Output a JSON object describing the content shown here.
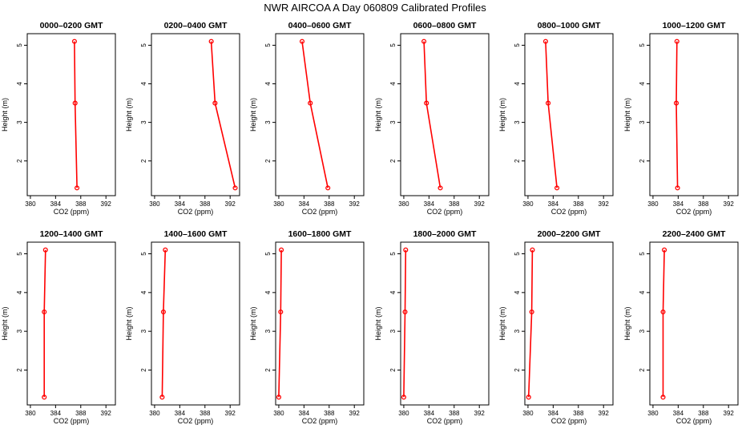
{
  "figure": {
    "title": "NWR AIRCOA A  Day 060809  Calibrated Profiles"
  },
  "style": {
    "line_color": "#ff0000",
    "marker_color": "#ff0000",
    "frame_color": "#000000"
  },
  "chart_data": [
    {
      "type": "line",
      "title": "0000–0200 GMT",
      "xlabel": "CO2 (ppm)",
      "ylabel": "Height (m)",
      "xlim": [
        379.5,
        393.5
      ],
      "ylim": [
        1.1,
        5.3
      ],
      "xticks": [
        380,
        384,
        388,
        392
      ],
      "yticks": [
        2,
        3,
        4,
        5
      ],
      "grid": false,
      "series": [
        {
          "x": [
            387.0,
            387.1,
            387.4
          ],
          "y": [
            5.1,
            3.5,
            1.3
          ]
        }
      ]
    },
    {
      "type": "line",
      "title": "0200–0400 GMT",
      "xlabel": "CO2 (ppm)",
      "ylabel": "Height (m)",
      "xlim": [
        379.5,
        393.5
      ],
      "ylim": [
        1.1,
        5.3
      ],
      "xticks": [
        380,
        384,
        388,
        392
      ],
      "yticks": [
        2,
        3,
        4,
        5
      ],
      "grid": false,
      "series": [
        {
          "x": [
            389.0,
            389.6,
            392.8
          ],
          "y": [
            5.1,
            3.5,
            1.3
          ]
        }
      ]
    },
    {
      "type": "line",
      "title": "0400–0600 GMT",
      "xlabel": "CO2 (ppm)",
      "ylabel": "Height (m)",
      "xlim": [
        379.5,
        393.5
      ],
      "ylim": [
        1.1,
        5.3
      ],
      "xticks": [
        380,
        384,
        388,
        392
      ],
      "yticks": [
        2,
        3,
        4,
        5
      ],
      "grid": false,
      "series": [
        {
          "x": [
            383.7,
            385.0,
            387.8
          ],
          "y": [
            5.1,
            3.5,
            1.3
          ]
        }
      ]
    },
    {
      "type": "line",
      "title": "0600–0800 GMT",
      "xlabel": "CO2 (ppm)",
      "ylabel": "Height (m)",
      "xlim": [
        379.5,
        393.5
      ],
      "ylim": [
        1.1,
        5.3
      ],
      "xticks": [
        380,
        384,
        388,
        392
      ],
      "yticks": [
        2,
        3,
        4,
        5
      ],
      "grid": false,
      "series": [
        {
          "x": [
            383.2,
            383.6,
            385.8
          ],
          "y": [
            5.1,
            3.5,
            1.3
          ]
        }
      ]
    },
    {
      "type": "line",
      "title": "0800–1000 GMT",
      "xlabel": "CO2 (ppm)",
      "ylabel": "Height (m)",
      "xlim": [
        379.5,
        393.5
      ],
      "ylim": [
        1.1,
        5.3
      ],
      "xticks": [
        380,
        384,
        388,
        392
      ],
      "yticks": [
        2,
        3,
        4,
        5
      ],
      "grid": false,
      "series": [
        {
          "x": [
            382.8,
            383.2,
            384.6
          ],
          "y": [
            5.1,
            3.5,
            1.3
          ]
        }
      ]
    },
    {
      "type": "line",
      "title": "1000–1200 GMT",
      "xlabel": "CO2 (ppm)",
      "ylabel": "Height (m)",
      "xlim": [
        379.5,
        393.5
      ],
      "ylim": [
        1.1,
        5.3
      ],
      "xticks": [
        380,
        384,
        388,
        392
      ],
      "yticks": [
        2,
        3,
        4,
        5
      ],
      "grid": false,
      "series": [
        {
          "x": [
            383.8,
            383.7,
            383.9
          ],
          "y": [
            5.1,
            3.5,
            1.3
          ]
        }
      ]
    },
    {
      "type": "line",
      "title": "1200–1400 GMT",
      "xlabel": "CO2 (ppm)",
      "ylabel": "Height (m)",
      "xlim": [
        379.5,
        393.5
      ],
      "ylim": [
        1.1,
        5.3
      ],
      "xticks": [
        380,
        384,
        388,
        392
      ],
      "yticks": [
        2,
        3,
        4,
        5
      ],
      "grid": false,
      "series": [
        {
          "x": [
            382.4,
            382.2,
            382.2
          ],
          "y": [
            5.1,
            3.5,
            1.3
          ]
        }
      ]
    },
    {
      "type": "line",
      "title": "1400–1600 GMT",
      "xlabel": "CO2 (ppm)",
      "ylabel": "Height (m)",
      "xlim": [
        379.5,
        393.5
      ],
      "ylim": [
        1.1,
        5.3
      ],
      "xticks": [
        380,
        384,
        388,
        392
      ],
      "yticks": [
        2,
        3,
        4,
        5
      ],
      "grid": false,
      "series": [
        {
          "x": [
            381.7,
            381.4,
            381.2
          ],
          "y": [
            5.1,
            3.5,
            1.3
          ]
        }
      ]
    },
    {
      "type": "line",
      "title": "1600–1800 GMT",
      "xlabel": "CO2 (ppm)",
      "ylabel": "Height (m)",
      "xlim": [
        379.5,
        393.5
      ],
      "ylim": [
        1.1,
        5.3
      ],
      "xticks": [
        380,
        384,
        388,
        392
      ],
      "yticks": [
        2,
        3,
        4,
        5
      ],
      "grid": false,
      "series": [
        {
          "x": [
            380.4,
            380.3,
            380.0
          ],
          "y": [
            5.1,
            3.5,
            1.3
          ]
        }
      ]
    },
    {
      "type": "line",
      "title": "1800–2000 GMT",
      "xlabel": "CO2 (ppm)",
      "ylabel": "Height (m)",
      "xlim": [
        379.5,
        393.5
      ],
      "ylim": [
        1.1,
        5.3
      ],
      "xticks": [
        380,
        384,
        388,
        392
      ],
      "yticks": [
        2,
        3,
        4,
        5
      ],
      "grid": false,
      "series": [
        {
          "x": [
            380.3,
            380.2,
            380.0
          ],
          "y": [
            5.1,
            3.5,
            1.3
          ]
        }
      ]
    },
    {
      "type": "line",
      "title": "2000–2200 GMT",
      "xlabel": "CO2 (ppm)",
      "ylabel": "Height (m)",
      "xlim": [
        379.5,
        393.5
      ],
      "ylim": [
        1.1,
        5.3
      ],
      "xticks": [
        380,
        384,
        388,
        392
      ],
      "yticks": [
        2,
        3,
        4,
        5
      ],
      "grid": false,
      "series": [
        {
          "x": [
            380.7,
            380.6,
            380.1
          ],
          "y": [
            5.1,
            3.5,
            1.3
          ]
        }
      ]
    },
    {
      "type": "line",
      "title": "2200–2400 GMT",
      "xlabel": "CO2 (ppm)",
      "ylabel": "Height (m)",
      "xlim": [
        379.5,
        393.5
      ],
      "ylim": [
        1.1,
        5.3
      ],
      "xticks": [
        380,
        384,
        388,
        392
      ],
      "yticks": [
        2,
        3,
        4,
        5
      ],
      "grid": false,
      "series": [
        {
          "x": [
            381.8,
            381.6,
            381.6
          ],
          "y": [
            5.1,
            3.5,
            1.3
          ]
        }
      ]
    }
  ]
}
